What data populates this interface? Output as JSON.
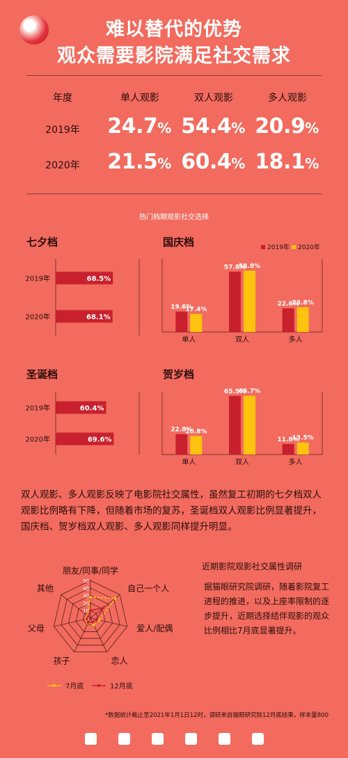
{
  "header": {
    "title_line1": "难以替代的优势",
    "title_line2": "观众需要影院满足社交需求"
  },
  "table": {
    "headers": [
      "年度",
      "单人观影",
      "双人观影",
      "多人观影"
    ],
    "rows": [
      {
        "year": "2019年",
        "values": [
          "24.7",
          "54.4",
          "20.9"
        ]
      },
      {
        "year": "2020年",
        "values": [
          "21.5",
          "60.4",
          "18.1"
        ]
      }
    ],
    "unit": "%"
  },
  "section_caption": "热门档期观影社交选择",
  "chart_data": [
    {
      "type": "bar",
      "orientation": "horizontal",
      "title": "七夕档",
      "categories": [
        "2019年",
        "2020年"
      ],
      "values": [
        68.5,
        68.1
      ],
      "labels": [
        "68.5%",
        "68.1%"
      ],
      "xlim": [
        0,
        100
      ],
      "color": "#c8202d"
    },
    {
      "type": "bar",
      "title": "国庆档",
      "categories": [
        "单人",
        "双人",
        "多人"
      ],
      "series": [
        {
          "name": "2019年",
          "values": [
            19.6,
            57.8,
            22.6
          ],
          "labels": [
            "19.6%",
            "57.8%",
            "22.6%"
          ],
          "color": "#c8202d"
        },
        {
          "name": "2020年",
          "values": [
            17.4,
            58.8,
            23.8
          ],
          "labels": [
            "17.4%",
            "58.8%",
            "23.8%"
          ],
          "color": "#ffc20e"
        }
      ],
      "ylim": [
        0,
        70
      ],
      "legend": "top-right"
    },
    {
      "type": "bar",
      "orientation": "horizontal",
      "title": "圣诞档",
      "categories": [
        "2019年",
        "2020年"
      ],
      "values": [
        60.4,
        69.6
      ],
      "labels": [
        "60.4%",
        "69.6%"
      ],
      "xlim": [
        0,
        100
      ],
      "color": "#c8202d"
    },
    {
      "type": "bar",
      "title": "贺岁档",
      "categories": [
        "单人",
        "双人",
        "多人"
      ],
      "series": [
        {
          "values": [
            22.8,
            65.5,
            11.8
          ],
          "labels": [
            "22.8%",
            "65.5%",
            "11.8%"
          ],
          "color": "#c8202d"
        },
        {
          "values": [
            20.8,
            65.7,
            13.5
          ],
          "labels": [
            "20.8%",
            "65.7%",
            "13.5%"
          ],
          "color": "#ffc20e"
        }
      ],
      "ylim": [
        0,
        70
      ]
    },
    {
      "type": "radar",
      "axes": [
        "朋友/同事/同学",
        "自己一个人",
        "爱人/配偶",
        "恋人",
        "孩子",
        "父母",
        "其他"
      ],
      "ticks": [
        0,
        10,
        20,
        30,
        40,
        50
      ],
      "rlim": [
        0,
        50
      ],
      "series": [
        {
          "name": "7月底",
          "values": [
            28,
            42,
            12,
            10,
            8,
            6,
            5
          ],
          "color": "#ffc20e"
        },
        {
          "name": "12月底",
          "values": [
            10,
            22,
            8,
            6,
            7,
            5,
            4
          ],
          "color": "#c8202d"
        }
      ],
      "legend": "bottom"
    }
  ],
  "paragraph": "双人观影、多人观影反映了电影院社交属性，虽然复工初期的七夕档双人观影比例略有下降，但随着市场的复苏，圣诞档双人观影比例显著提升，国庆档、贺岁档双人观影、多人观影同样提升明显。",
  "side": {
    "title": "近期影院观影社交属性调研",
    "text": "据猫眼研究院调研，随着影院复工进程的推进，以及上座率限制的逐步提升，近期选择结伴观影的观众比例相比7月底显著提升。"
  },
  "footnote": "*数据统计截止至2021年1月1日12时，调研来自猫眼研究院12月底结果，样本量800"
}
